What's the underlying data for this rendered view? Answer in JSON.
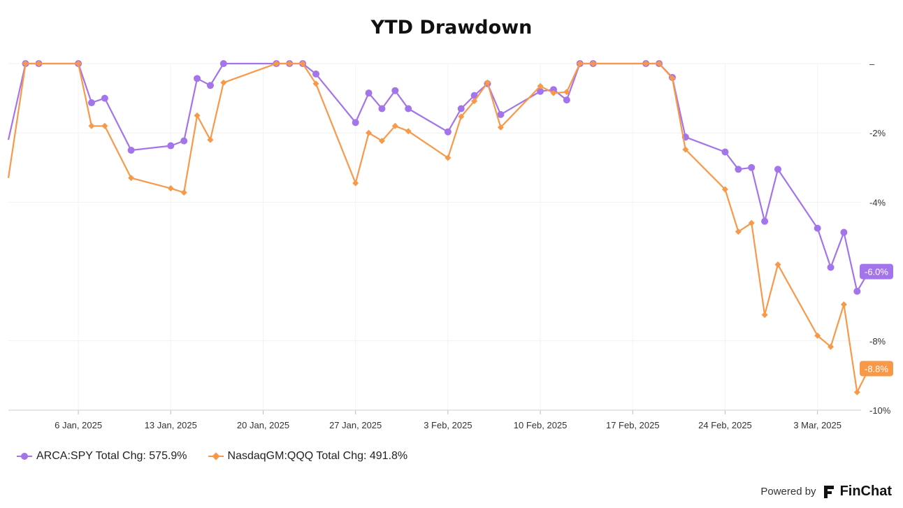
{
  "chart_data": {
    "type": "line",
    "title": "YTD Drawdown",
    "xlabel": "",
    "ylabel": "",
    "x_tick_labels": [
      "6 Jan, 2025",
      "13 Jan, 2025",
      "20 Jan, 2025",
      "27 Jan, 2025",
      "3 Feb, 2025",
      "10 Feb, 2025",
      "17 Feb, 2025",
      "24 Feb, 2025",
      "3 Mar, 2025"
    ],
    "x_tick_days": [
      6,
      13,
      20,
      27,
      34,
      41,
      48,
      55,
      62
    ],
    "y_ticks": [
      0,
      -2,
      -4,
      -8,
      -10
    ],
    "y_tick_labels": [
      "–",
      "-2%",
      "-4%",
      "-8%",
      "-10%"
    ],
    "ylim": [
      -10,
      0
    ],
    "xlim": [
      0.7,
      65.3
    ],
    "series": [
      {
        "name": "ARCA:SPY",
        "legend_label": "ARCA:SPY Total Chg: 575.9%",
        "end_label": "-6.0%",
        "color": "#a374ea",
        "marker": "circle",
        "points": [
          [
            0.7,
            -2.2
          ],
          [
            2,
            0
          ],
          [
            3,
            0
          ],
          [
            6,
            0
          ],
          [
            7,
            -1.13
          ],
          [
            8,
            -1.0
          ],
          [
            10,
            -2.5
          ],
          [
            13,
            -2.37
          ],
          [
            14,
            -2.23
          ],
          [
            15,
            -0.43
          ],
          [
            16,
            -0.63
          ],
          [
            17,
            0
          ],
          [
            21,
            0
          ],
          [
            22,
            0
          ],
          [
            23,
            0
          ],
          [
            24,
            -0.3
          ],
          [
            27,
            -1.7
          ],
          [
            28,
            -0.85
          ],
          [
            29,
            -1.3
          ],
          [
            30,
            -0.78
          ],
          [
            31,
            -1.3
          ],
          [
            34,
            -1.97
          ],
          [
            35,
            -1.3
          ],
          [
            36,
            -0.92
          ],
          [
            37,
            -0.58
          ],
          [
            38,
            -1.47
          ],
          [
            41,
            -0.8
          ],
          [
            42,
            -0.75
          ],
          [
            43,
            -1.05
          ],
          [
            44,
            0
          ],
          [
            45,
            0
          ],
          [
            49,
            0
          ],
          [
            50,
            0
          ],
          [
            51,
            -0.4
          ],
          [
            52,
            -2.12
          ],
          [
            55,
            -2.55
          ],
          [
            56,
            -3.05
          ],
          [
            57,
            -3.0
          ],
          [
            58,
            -4.55
          ],
          [
            59,
            -3.05
          ],
          [
            62,
            -4.75
          ],
          [
            63,
            -5.88
          ],
          [
            64,
            -4.87
          ],
          [
            65,
            -6.57
          ],
          [
            65.9,
            -6.0
          ]
        ]
      },
      {
        "name": "NasdaqGM:QQQ",
        "legend_label": "NasdaqGM:QQQ Total Chg: 491.8%",
        "end_label": "-8.8%",
        "color": "#f8994a",
        "marker": "diamond",
        "points": [
          [
            0.7,
            -3.3
          ],
          [
            2,
            0
          ],
          [
            3,
            0
          ],
          [
            6,
            0
          ],
          [
            7,
            -1.8
          ],
          [
            8,
            -1.8
          ],
          [
            10,
            -3.3
          ],
          [
            13,
            -3.6
          ],
          [
            14,
            -3.72
          ],
          [
            15,
            -1.5
          ],
          [
            16,
            -2.2
          ],
          [
            17,
            -0.55
          ],
          [
            21,
            0
          ],
          [
            22,
            0
          ],
          [
            23,
            0
          ],
          [
            24,
            -0.58
          ],
          [
            27,
            -3.45
          ],
          [
            28,
            -2.0
          ],
          [
            29,
            -2.23
          ],
          [
            30,
            -1.8
          ],
          [
            31,
            -1.95
          ],
          [
            34,
            -2.72
          ],
          [
            35,
            -1.53
          ],
          [
            36,
            -1.08
          ],
          [
            37,
            -0.55
          ],
          [
            38,
            -1.84
          ],
          [
            41,
            -0.65
          ],
          [
            42,
            -0.85
          ],
          [
            43,
            -0.82
          ],
          [
            44,
            0
          ],
          [
            45,
            0
          ],
          [
            49,
            0
          ],
          [
            50,
            0
          ],
          [
            51,
            -0.42
          ],
          [
            52,
            -2.48
          ],
          [
            55,
            -3.63
          ],
          [
            56,
            -4.85
          ],
          [
            57,
            -4.6
          ],
          [
            58,
            -7.25
          ],
          [
            59,
            -5.8
          ],
          [
            62,
            -7.85
          ],
          [
            63,
            -8.17
          ],
          [
            64,
            -6.95
          ],
          [
            65,
            -9.48
          ],
          [
            65.9,
            -8.8
          ]
        ]
      }
    ]
  },
  "footer": {
    "powered_by": "Powered by",
    "brand": "FinChat"
  }
}
